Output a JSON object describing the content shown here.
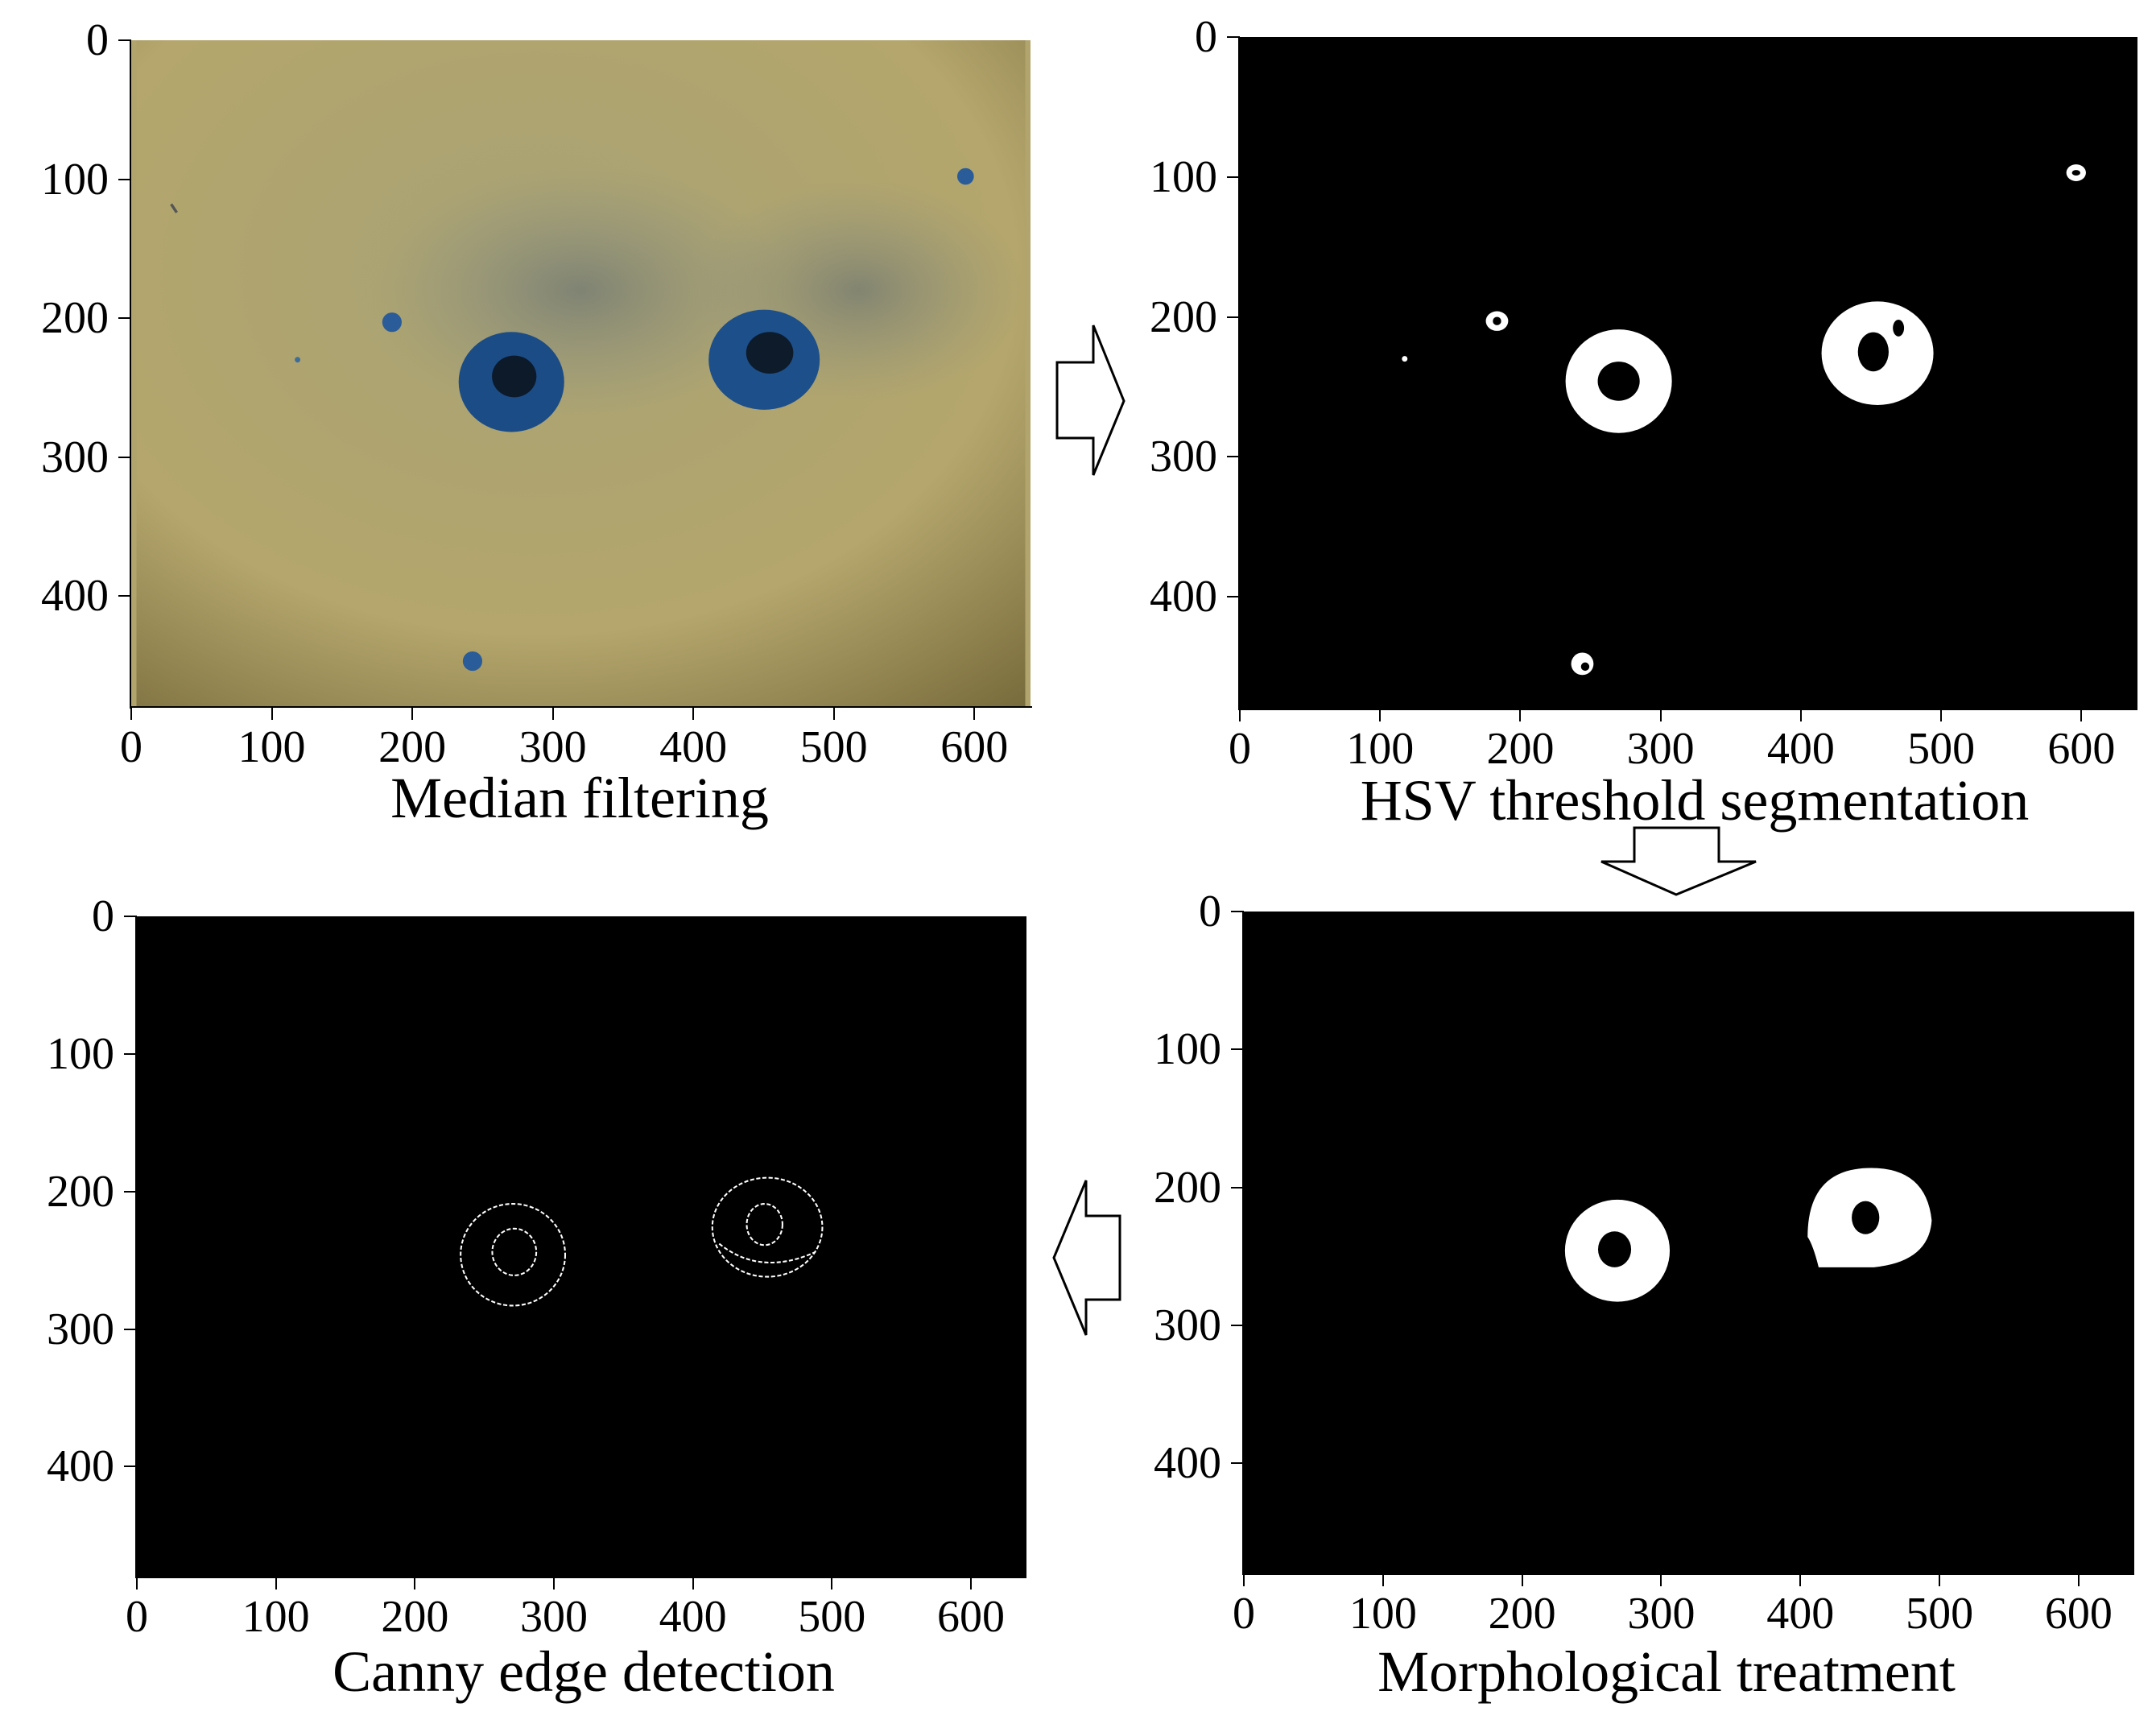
{
  "panels": {
    "median": {
      "caption": "Median filtering",
      "y_ticks": [
        "0",
        "100",
        "200",
        "300",
        "400"
      ],
      "x_ticks": [
        "0",
        "100",
        "200",
        "300",
        "400",
        "500",
        "600"
      ],
      "background_color": "#b3a56e"
    },
    "hsv": {
      "caption": "HSV threshold segmentation",
      "y_ticks": [
        "0",
        "100",
        "200",
        "300",
        "400"
      ],
      "x_ticks": [
        "0",
        "100",
        "200",
        "300",
        "400",
        "500",
        "600"
      ]
    },
    "canny": {
      "caption": "Canny edge detection",
      "y_ticks": [
        "0",
        "100",
        "200",
        "300",
        "400"
      ],
      "x_ticks": [
        "0",
        "100",
        "200",
        "300",
        "400",
        "500",
        "600"
      ]
    },
    "morph": {
      "caption": "Morphological treatment",
      "y_ticks": [
        "0",
        "100",
        "200",
        "300",
        "400"
      ],
      "x_ticks": [
        "0",
        "100",
        "200",
        "300",
        "400",
        "500",
        "600"
      ]
    }
  },
  "colors": {
    "blue_object": "#1d4f8a",
    "binary_fg": "#ffffff",
    "binary_bg": "#000000"
  },
  "arrows": [
    "arrow-right",
    "arrow-down",
    "arrow-left"
  ]
}
